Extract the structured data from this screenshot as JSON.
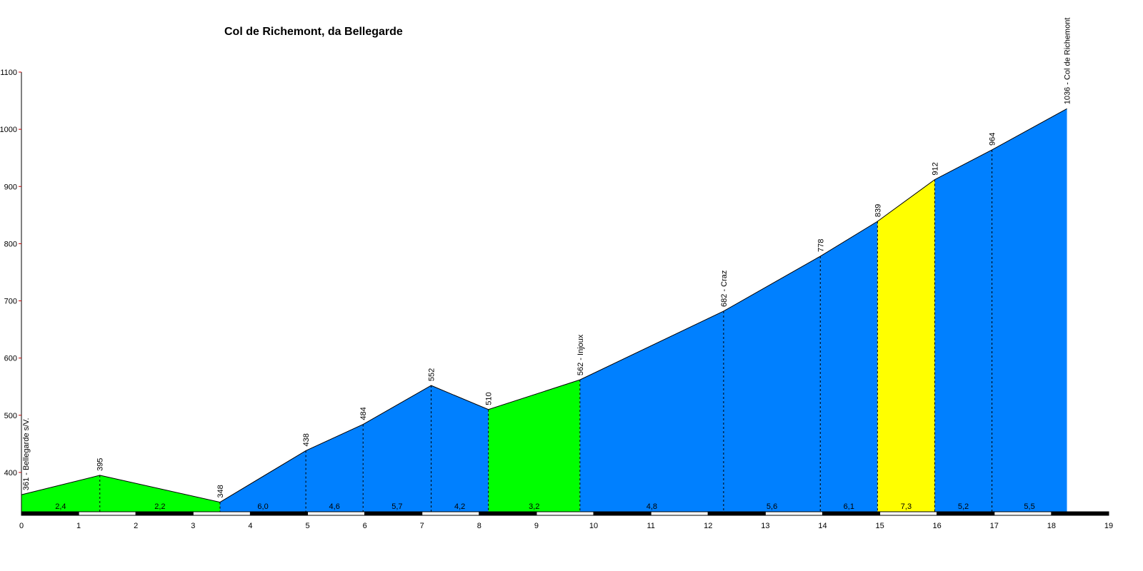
{
  "chart_data": {
    "type": "area",
    "title": "Col de Richemont, da Bellegarde",
    "xlabel": "",
    "ylabel": "",
    "xlim": [
      0,
      19
    ],
    "ylim": [
      330,
      1100
    ],
    "x_ticks": [
      "0",
      "1",
      "2",
      "3",
      "4",
      "5",
      "6",
      "7",
      "8",
      "9",
      "10",
      "11",
      "12",
      "13",
      "14",
      "15",
      "16",
      "17",
      "18",
      "19"
    ],
    "y_ticks": [
      "400",
      "500",
      "600",
      "700",
      "800",
      "900",
      "1000",
      "1100"
    ],
    "points": [
      {
        "x": 0.0,
        "y": 361,
        "label": "361 - Bellegarde s/V."
      },
      {
        "x": 1.37,
        "y": 395,
        "label": "395"
      },
      {
        "x": 3.47,
        "y": 348,
        "label": "348"
      },
      {
        "x": 4.97,
        "y": 438,
        "label": "438"
      },
      {
        "x": 5.97,
        "y": 484,
        "label": "484"
      },
      {
        "x": 7.16,
        "y": 552,
        "label": "552"
      },
      {
        "x": 8.16,
        "y": 510,
        "label": "510"
      },
      {
        "x": 9.76,
        "y": 562,
        "label": "562 - Injoux"
      },
      {
        "x": 12.27,
        "y": 682,
        "label": "682 - Craz"
      },
      {
        "x": 13.96,
        "y": 778,
        "label": "778"
      },
      {
        "x": 14.96,
        "y": 839,
        "label": "839"
      },
      {
        "x": 15.96,
        "y": 912,
        "label": "912"
      },
      {
        "x": 16.96,
        "y": 964,
        "label": "964"
      },
      {
        "x": 18.27,
        "y": 1036,
        "label": "1036 - Col de Richemont"
      }
    ],
    "segments": [
      {
        "gradient": "2,4",
        "color": "#00ff00"
      },
      {
        "gradient": "2,2",
        "color": "#00ff00"
      },
      {
        "gradient": "6,0",
        "color": "#0080ff"
      },
      {
        "gradient": "4,6",
        "color": "#0080ff"
      },
      {
        "gradient": "5,7",
        "color": "#0080ff"
      },
      {
        "gradient": "4,2",
        "color": "#0080ff"
      },
      {
        "gradient": "3,2",
        "color": "#00ff00"
      },
      {
        "gradient": "4,8",
        "color": "#0080ff"
      },
      {
        "gradient": "5,6",
        "color": "#0080ff"
      },
      {
        "gradient": "6,1",
        "color": "#0080ff"
      },
      {
        "gradient": "7,3",
        "color": "#ffff00"
      },
      {
        "gradient": "5,2",
        "color": "#0080ff"
      },
      {
        "gradient": "5,5",
        "color": "#0080ff"
      }
    ],
    "grid": false,
    "legend": "none"
  },
  "colors": {
    "axis": "#000000",
    "y_tick_mark": "#cc0000"
  }
}
